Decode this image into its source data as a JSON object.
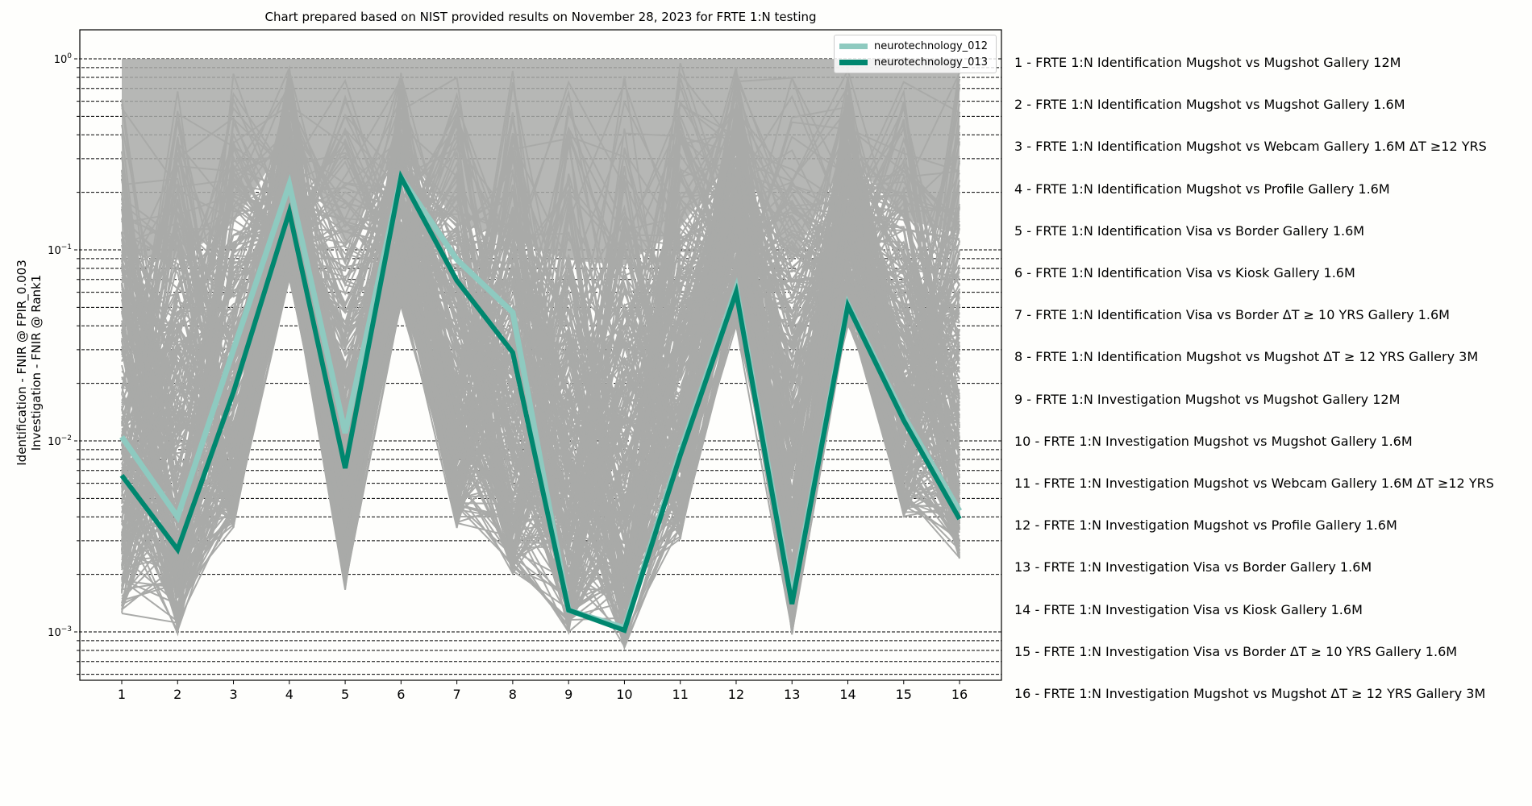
{
  "chart_data": {
    "type": "line",
    "title": "Chart prepared based on NIST provided results on November 28, 2023 for FRTE 1:N testing",
    "xlabel": "",
    "ylabel": "Identification - FNIR @ FPIR_0.003\nInvestigation - FNIR @ Rank1",
    "ylabel_lines": [
      "Identification - FNIR @ FPIR_0.003",
      "Investigation - FNIR @ Rank1"
    ],
    "yscale": "log",
    "ylim": [
      0.00055,
      1.4
    ],
    "y_ticks": [
      "10^0",
      "10^-1",
      "10^-2",
      "10^-3"
    ],
    "y_tick_values": [
      1,
      0.1,
      0.01,
      0.001
    ],
    "grid": "horizontal dashed at major and minor log ticks",
    "legend_position": "upper right",
    "categories": [
      "1",
      "2",
      "3",
      "4",
      "5",
      "6",
      "7",
      "8",
      "9",
      "10",
      "11",
      "12",
      "13",
      "14",
      "15",
      "16"
    ],
    "series": [
      {
        "name": "neurotechnology_012",
        "color": "#8ecac0",
        "width": 7,
        "values": [
          0.0105,
          0.004,
          0.03,
          0.22,
          0.011,
          0.24,
          0.089,
          0.047,
          0.0013,
          0.00105,
          0.0088,
          0.063,
          0.0015,
          0.052,
          0.0135,
          0.0043
        ]
      },
      {
        "name": "neurotechnology_013",
        "color": "#00876f",
        "width": 6,
        "values": [
          0.0066,
          0.0027,
          0.018,
          0.158,
          0.0072,
          0.24,
          0.069,
          0.029,
          0.0013,
          0.00102,
          0.0084,
          0.06,
          0.0014,
          0.051,
          0.0128,
          0.0039
        ]
      }
    ],
    "background_series": {
      "description": "Several hundred other algorithms drawn as thin gray lines",
      "color": "#a9aaa8",
      "min_values": [
        0.0012,
        0.00098,
        0.0035,
        0.07,
        0.0016,
        0.05,
        0.0035,
        0.002,
        0.00098,
        0.00082,
        0.003,
        0.04,
        0.0009,
        0.04,
        0.004,
        0.0024
      ],
      "max_values": [
        1.0,
        1.0,
        1.0,
        1.0,
        1.0,
        1.0,
        1.0,
        1.0,
        1.0,
        1.0,
        1.0,
        1.0,
        1.0,
        1.0,
        1.0,
        1.0
      ]
    },
    "category_descriptions": [
      "1 - FRTE 1:N Identification Mugshot vs Mugshot Gallery 12M",
      "2 - FRTE 1:N Identification Mugshot vs Mugshot Gallery 1.6M",
      "3 - FRTE 1:N Identification Mugshot vs Webcam Gallery 1.6M ΔT ≥12 YRS",
      "4 - FRTE 1:N Identification Mugshot vs Profile Gallery 1.6M",
      "5 - FRTE 1:N Identification Visa vs Border Gallery 1.6M",
      "6 - FRTE 1:N Identification Visa vs Kiosk Gallery 1.6M",
      "7 - FRTE 1:N Identification Visa vs Border ΔT ≥ 10 YRS Gallery 1.6M",
      "8 - FRTE 1:N Identification Mugshot vs Mugshot ΔT ≥ 12 YRS Gallery 3M",
      "9 - FRTE 1:N Investigation Mugshot vs Mugshot Gallery 12M",
      "10 - FRTE 1:N Investigation Mugshot vs Mugshot Gallery 1.6M",
      "11 - FRTE 1:N Investigation Mugshot vs Webcam Gallery 1.6M ΔT ≥12 YRS",
      "12 - FRTE 1:N Investigation Mugshot vs Profile Gallery 1.6M",
      "13 - FRTE 1:N Investigation Visa vs Border Gallery 1.6M",
      "14 - FRTE 1:N Investigation Visa vs Kiosk Gallery 1.6M",
      "15 - FRTE 1:N Investigation Visa vs Border ΔT ≥ 10 YRS Gallery 1.6M",
      "16 - FRTE 1:N Investigation Mugshot vs Mugshot ΔT ≥ 12 YRS Gallery 3M"
    ]
  },
  "legend": {
    "items": [
      {
        "label": "neurotechnology_012",
        "color": "#8ecac0"
      },
      {
        "label": "neurotechnology_013",
        "color": "#00876f"
      }
    ]
  }
}
